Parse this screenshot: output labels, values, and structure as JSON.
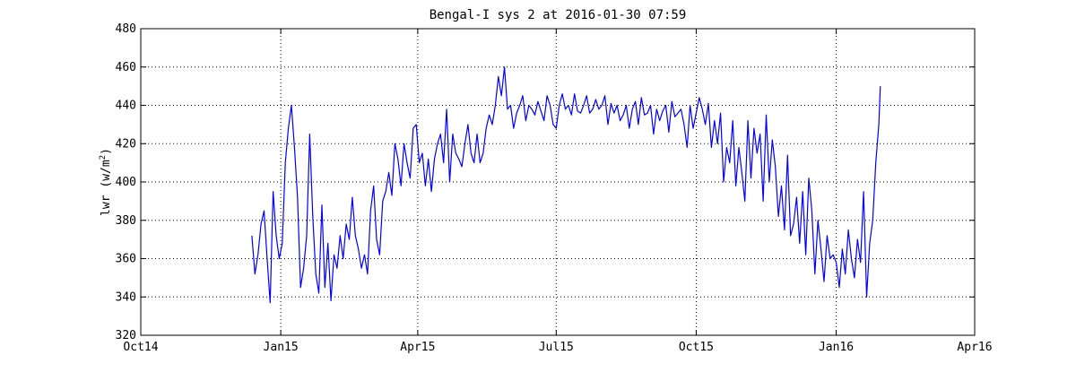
{
  "chart_data": {
    "type": "line",
    "title": "Bengal-I sys 2 at 2016-01-30 07:59",
    "xlabel": "",
    "ylabel": "lwr (w/m",
    "ylabel_sup": "2",
    "ylabel_close": ")",
    "xlim": [
      "2014-10-01",
      "2016-04-01"
    ],
    "ylim": [
      320,
      480
    ],
    "x_ticks": [
      {
        "date": "2014-10-01",
        "label": "Oct14"
      },
      {
        "date": "2015-01-01",
        "label": "Jan15"
      },
      {
        "date": "2015-04-01",
        "label": "Apr15"
      },
      {
        "date": "2015-07-01",
        "label": "Jul15"
      },
      {
        "date": "2015-10-01",
        "label": "Oct15"
      },
      {
        "date": "2016-01-01",
        "label": "Jan16"
      },
      {
        "date": "2016-04-01",
        "label": "Apr16"
      }
    ],
    "y_ticks": [
      320,
      340,
      360,
      380,
      400,
      420,
      440,
      460,
      480
    ],
    "grid": "dotted",
    "legend": "none",
    "series": [
      {
        "color": "#0000ff",
        "x": [
          "2014-12-13",
          "2014-12-15",
          "2014-12-17",
          "2014-12-19",
          "2014-12-21",
          "2014-12-23",
          "2014-12-25",
          "2014-12-27",
          "2014-12-29",
          "2014-12-31",
          "2015-01-02",
          "2015-01-04",
          "2015-01-06",
          "2015-01-08",
          "2015-01-10",
          "2015-01-12",
          "2015-01-14",
          "2015-01-16",
          "2015-01-18",
          "2015-01-20",
          "2015-01-22",
          "2015-01-24",
          "2015-01-26",
          "2015-01-28",
          "2015-01-30",
          "2015-02-01",
          "2015-02-03",
          "2015-02-05",
          "2015-02-07",
          "2015-02-09",
          "2015-02-11",
          "2015-02-13",
          "2015-02-15",
          "2015-02-17",
          "2015-02-19",
          "2015-02-21",
          "2015-02-23",
          "2015-02-25",
          "2015-02-27",
          "2015-03-01",
          "2015-03-03",
          "2015-03-05",
          "2015-03-07",
          "2015-03-09",
          "2015-03-11",
          "2015-03-13",
          "2015-03-15",
          "2015-03-17",
          "2015-03-19",
          "2015-03-21",
          "2015-03-23",
          "2015-03-25",
          "2015-03-27",
          "2015-03-29",
          "2015-03-31",
          "2015-04-02",
          "2015-04-04",
          "2015-04-06",
          "2015-04-08",
          "2015-04-10",
          "2015-04-12",
          "2015-04-14",
          "2015-04-16",
          "2015-04-18",
          "2015-04-20",
          "2015-04-22",
          "2015-04-24",
          "2015-04-26",
          "2015-04-28",
          "2015-04-30",
          "2015-05-02",
          "2015-05-04",
          "2015-05-06",
          "2015-05-08",
          "2015-05-10",
          "2015-05-12",
          "2015-05-14",
          "2015-05-16",
          "2015-05-18",
          "2015-05-20",
          "2015-05-22",
          "2015-05-24",
          "2015-05-26",
          "2015-05-28",
          "2015-05-30",
          "2015-06-01",
          "2015-06-03",
          "2015-06-05",
          "2015-06-07",
          "2015-06-09",
          "2015-06-11",
          "2015-06-13",
          "2015-06-15",
          "2015-06-17",
          "2015-06-19",
          "2015-06-21",
          "2015-06-23",
          "2015-06-25",
          "2015-06-27",
          "2015-06-29",
          "2015-07-01",
          "2015-07-03",
          "2015-07-05",
          "2015-07-07",
          "2015-07-09",
          "2015-07-11",
          "2015-07-13",
          "2015-07-15",
          "2015-07-17",
          "2015-07-19",
          "2015-07-21",
          "2015-07-23",
          "2015-07-25",
          "2015-07-27",
          "2015-07-29",
          "2015-07-31",
          "2015-08-02",
          "2015-08-04",
          "2015-08-06",
          "2015-08-08",
          "2015-08-10",
          "2015-08-12",
          "2015-08-14",
          "2015-08-16",
          "2015-08-18",
          "2015-08-20",
          "2015-08-22",
          "2015-08-24",
          "2015-08-26",
          "2015-08-28",
          "2015-08-30",
          "2015-09-01",
          "2015-09-03",
          "2015-09-05",
          "2015-09-07",
          "2015-09-09",
          "2015-09-11",
          "2015-09-13",
          "2015-09-15",
          "2015-09-17",
          "2015-09-19",
          "2015-09-21",
          "2015-09-23",
          "2015-09-25",
          "2015-09-27",
          "2015-09-29",
          "2015-10-01",
          "2015-10-03",
          "2015-10-05",
          "2015-10-07",
          "2015-10-09",
          "2015-10-11",
          "2015-10-13",
          "2015-10-15",
          "2015-10-17",
          "2015-10-19",
          "2015-10-21",
          "2015-10-23",
          "2015-10-25",
          "2015-10-27",
          "2015-10-29",
          "2015-10-31",
          "2015-11-02",
          "2015-11-04",
          "2015-11-06",
          "2015-11-08",
          "2015-11-10",
          "2015-11-12",
          "2015-11-14",
          "2015-11-16",
          "2015-11-18",
          "2015-11-20",
          "2015-11-22",
          "2015-11-24",
          "2015-11-26",
          "2015-11-28",
          "2015-11-30",
          "2015-12-02",
          "2015-12-04",
          "2015-12-06",
          "2015-12-08",
          "2015-12-10",
          "2015-12-12",
          "2015-12-14",
          "2015-12-16",
          "2015-12-18",
          "2015-12-20",
          "2015-12-22",
          "2015-12-24",
          "2015-12-26",
          "2015-12-28",
          "2015-12-30",
          "2016-01-01",
          "2016-01-03",
          "2016-01-05",
          "2016-01-07",
          "2016-01-09",
          "2016-01-11",
          "2016-01-13",
          "2016-01-15",
          "2016-01-17",
          "2016-01-19",
          "2016-01-21",
          "2016-01-23",
          "2016-01-25",
          "2016-01-27",
          "2016-01-29",
          "2016-01-30"
        ],
        "y": [
          372,
          352,
          362,
          378,
          385,
          360,
          337,
          395,
          372,
          360,
          368,
          410,
          428,
          440,
          418,
          392,
          345,
          355,
          372,
          425,
          382,
          352,
          342,
          388,
          345,
          368,
          338,
          362,
          355,
          372,
          360,
          378,
          370,
          392,
          372,
          365,
          355,
          362,
          352,
          385,
          398,
          370,
          362,
          390,
          395,
          405,
          393,
          420,
          412,
          398,
          420,
          410,
          402,
          428,
          430,
          410,
          415,
          398,
          412,
          395,
          412,
          420,
          425,
          410,
          438,
          400,
          425,
          415,
          412,
          408,
          420,
          430,
          415,
          410,
          425,
          410,
          415,
          428,
          435,
          430,
          440,
          455,
          445,
          460,
          438,
          440,
          428,
          436,
          440,
          445,
          432,
          440,
          438,
          435,
          442,
          437,
          432,
          445,
          440,
          430,
          428,
          440,
          446,
          438,
          440,
          435,
          446,
          437,
          436,
          440,
          445,
          436,
          438,
          443,
          438,
          440,
          445,
          430,
          441,
          436,
          440,
          432,
          435,
          440,
          428,
          438,
          442,
          430,
          444,
          435,
          436,
          440,
          425,
          438,
          432,
          437,
          440,
          426,
          442,
          434,
          436,
          438,
          430,
          418,
          440,
          428,
          436,
          444,
          438,
          430,
          441,
          418,
          432,
          420,
          436,
          400,
          418,
          410,
          432,
          398,
          418,
          405,
          390,
          432,
          402,
          428,
          415,
          425,
          390,
          435,
          400,
          422,
          408,
          382,
          398,
          375,
          414,
          372,
          378,
          392,
          368,
          395,
          362,
          402,
          385,
          352,
          380,
          365,
          348,
          372,
          360,
          362,
          358,
          345,
          365,
          352,
          375,
          360,
          350,
          370,
          358,
          395,
          340,
          368,
          380,
          410,
          430,
          450
        ]
      }
    ]
  }
}
